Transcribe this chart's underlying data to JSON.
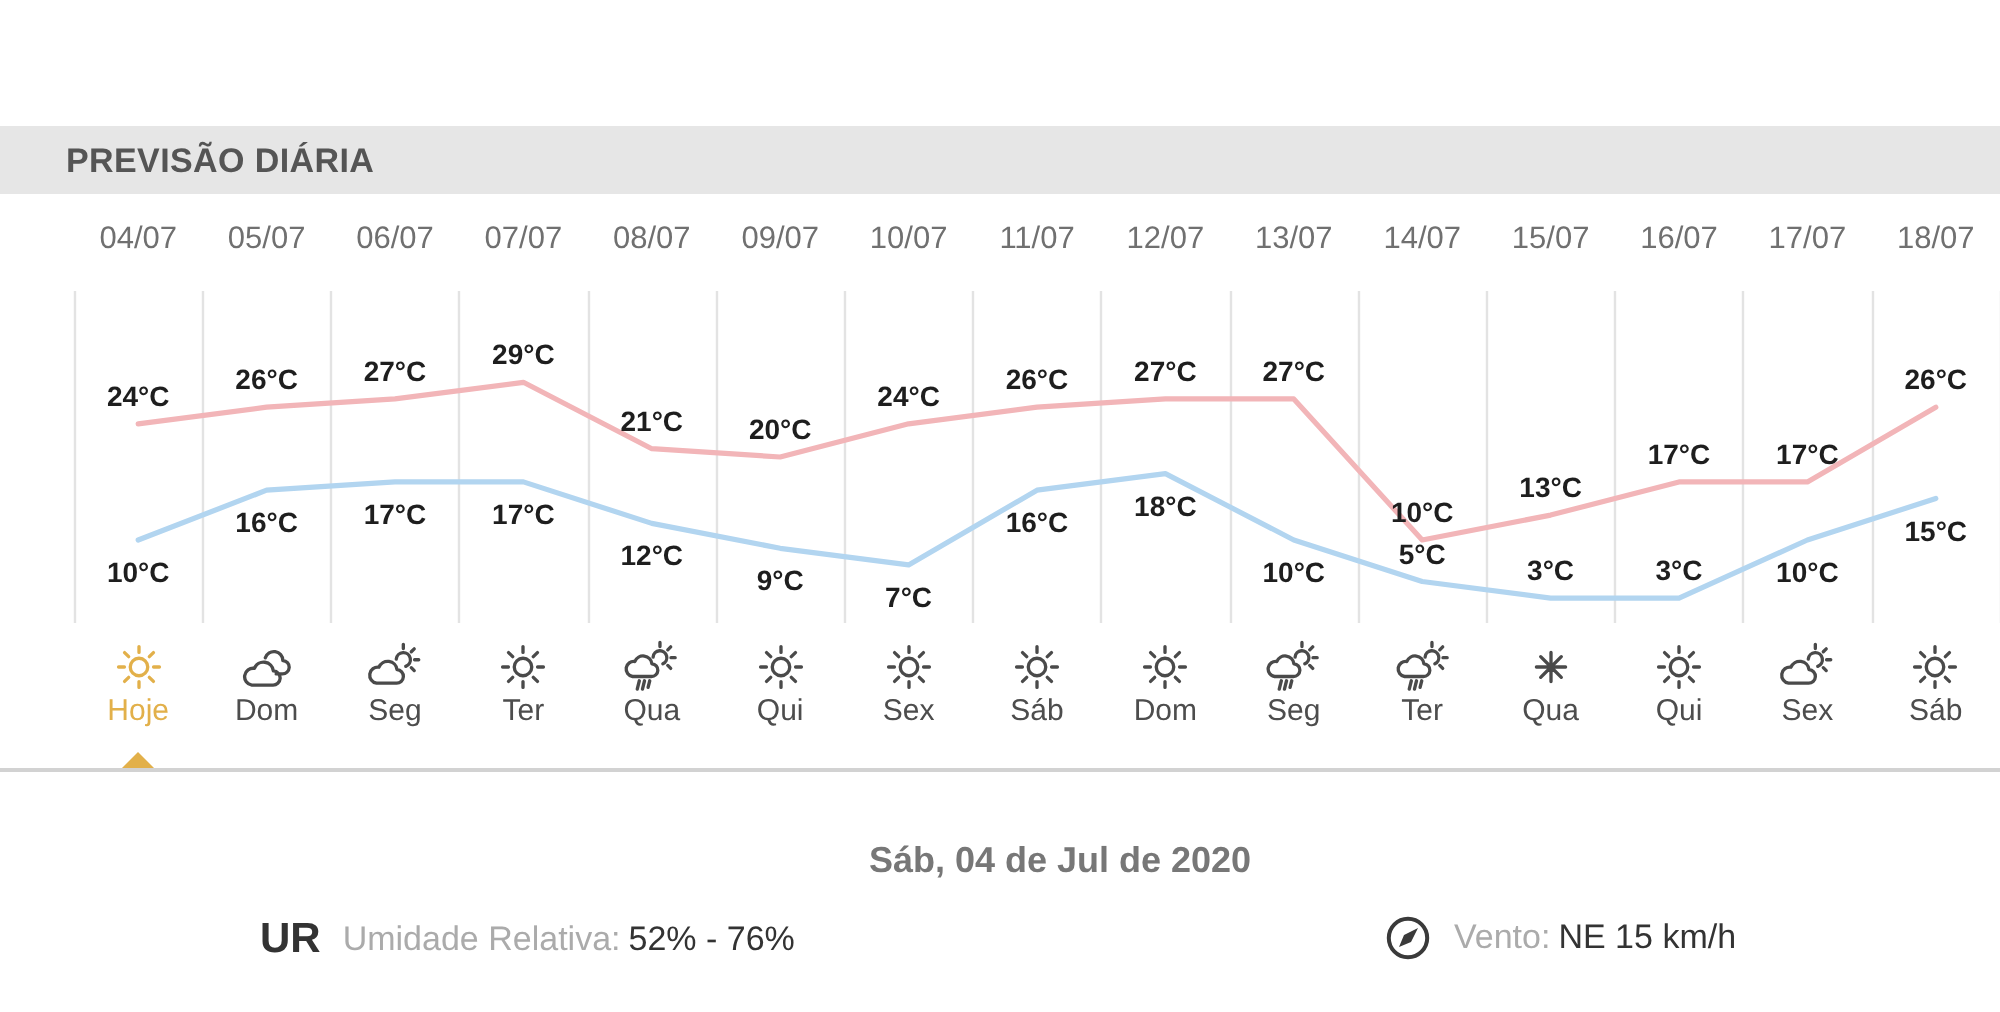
{
  "chart_data": {
    "type": "line",
    "title": "PREVISÃO DIÁRIA",
    "categories": [
      "04/07",
      "05/07",
      "06/07",
      "07/07",
      "08/07",
      "09/07",
      "10/07",
      "11/07",
      "12/07",
      "13/07",
      "14/07",
      "15/07",
      "16/07",
      "17/07",
      "18/07"
    ],
    "series": [
      {
        "color": "#f2b5b8",
        "values": [
          24,
          26,
          27,
          29,
          21,
          20,
          24,
          26,
          27,
          27,
          10,
          13,
          17,
          17,
          26
        ],
        "value_labels": [
          "24°C",
          "26°C",
          "27°C",
          "29°C",
          "21°C",
          "20°C",
          "24°C",
          "26°C",
          "27°C",
          "27°C",
          "10°C",
          "13°C",
          "17°C",
          "17°C",
          "26°C"
        ]
      },
      {
        "color": "#b2d5f0",
        "values": [
          10,
          16,
          17,
          17,
          12,
          9,
          7,
          16,
          18,
          10,
          5,
          3,
          3,
          10,
          15
        ],
        "value_labels": [
          "10°C",
          "16°C",
          "17°C",
          "17°C",
          "12°C",
          "9°C",
          "7°C",
          "16°C",
          "18°C",
          "10°C",
          "5°C",
          "3°C",
          "3°C",
          "10°C",
          "15°C"
        ]
      }
    ],
    "ylim": [
      0,
      40
    ],
    "grid": "x",
    "tick_labels": "x",
    "annotations": [
      "Hoje",
      "Dom",
      "Seg",
      "Ter",
      "Qua",
      "Qui",
      "Sex",
      "Sáb",
      "Dom",
      "Seg",
      "Ter",
      "Qua",
      "Qui",
      "Sex",
      "Sáb",
      "Sáb, 04 de Jul de 2020",
      "UR",
      "Umidade Relativa:",
      "52% - 76%",
      "Vento:",
      "NE 15 km/h"
    ]
  }
}
